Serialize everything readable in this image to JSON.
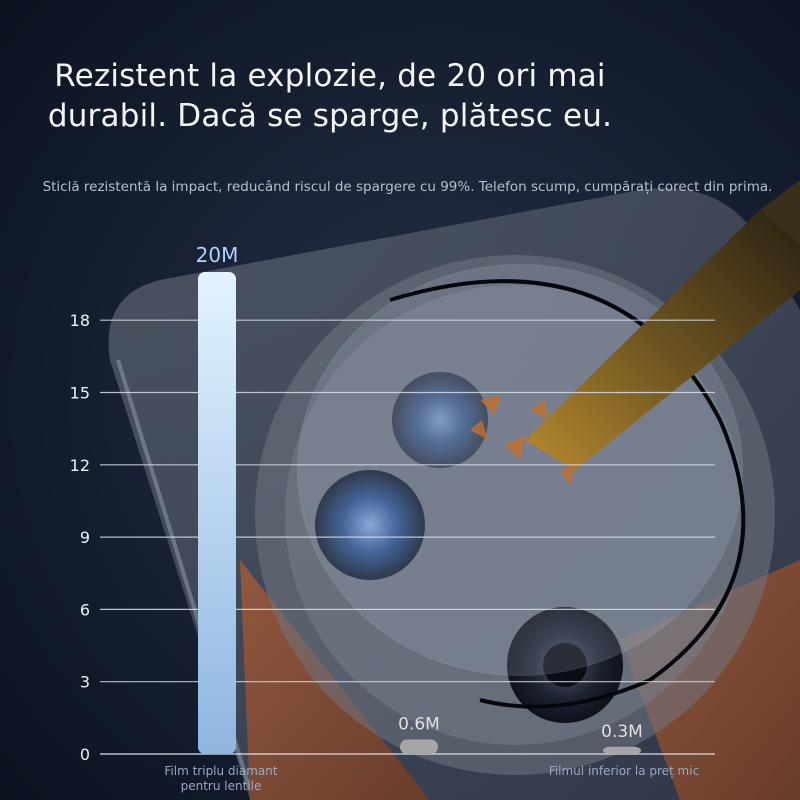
{
  "headline": {
    "line1": "Rezistent la explozie, de 20 ori mai",
    "line2": "durabil. Dacă se sparge, plătesc eu."
  },
  "subtext": "Sticlă rezistentă la impact, reducând riscul de spargere cu 99%. Telefon scump, cumpărați corect din prima.",
  "colors": {
    "background": "#0f1726",
    "bar_primary_top": "#e3f3ff",
    "bar_primary_bottom": "#8fb6e0",
    "bar_secondary": "#a6a6a6",
    "gridline": "#d8dde6",
    "tick_text": "#eef1f6",
    "value_label_primary": "#a9d4ff",
    "value_label_secondary": "#e0e0e0",
    "category_text": "#9aa8bf"
  },
  "chart_data": {
    "type": "bar",
    "categories": [
      "Film triplu diamant pentru lentile",
      "",
      "Filmul inferior la preț mic"
    ],
    "category_label_lines": [
      [
        "Film triplu diamant",
        "pentru lentile"
      ],
      [],
      [
        "Filmul inferior la preț mic"
      ]
    ],
    "values": [
      20,
      0.6,
      0.3
    ],
    "data_labels": [
      "20M",
      "0.6M",
      "0.3M"
    ],
    "yticks": [
      0,
      3,
      6,
      9,
      12,
      15,
      18
    ],
    "ylim": [
      0,
      20
    ],
    "grid": true,
    "title": "",
    "xlabel": "",
    "ylabel": ""
  }
}
